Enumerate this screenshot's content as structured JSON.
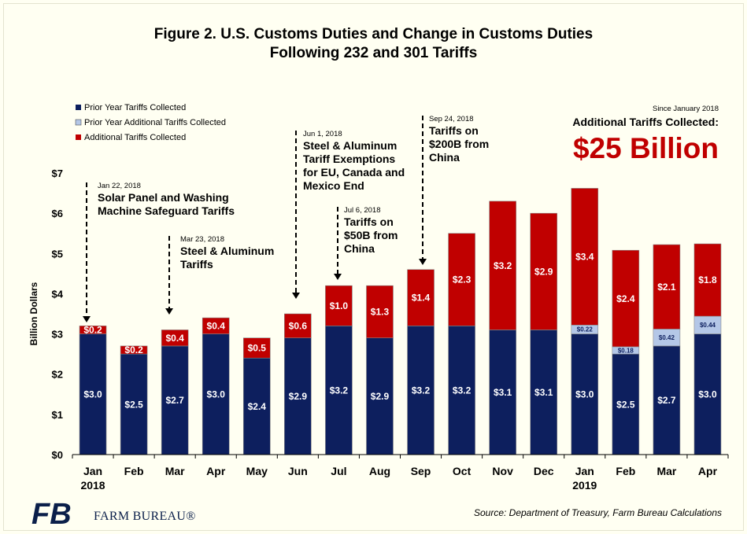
{
  "chart_data": {
    "type": "stacked-bar",
    "title_line1": "Figure 2. U.S. Customs Duties and Change in Customs Duties",
    "title_line2": "Following 232 and 301 Tariffs",
    "ylabel": "Billion Dollars",
    "ylim": [
      0,
      7
    ],
    "yticks": [
      "$0",
      "$1",
      "$2",
      "$3",
      "$4",
      "$5",
      "$6",
      "$7"
    ],
    "categories": [
      "Jan",
      "Feb",
      "Mar",
      "Apr",
      "May",
      "Jun",
      "Jul",
      "Aug",
      "Sep",
      "Oct",
      "Nov",
      "Dec",
      "Jan",
      "Feb",
      "Mar",
      "Apr"
    ],
    "year_labels": [
      {
        "index": 0,
        "label": "2018"
      },
      {
        "index": 12,
        "label": "2019"
      }
    ],
    "series": [
      {
        "name": "Prior Year Tariffs Collected",
        "color": "#0d1f5e",
        "values": [
          3.0,
          2.5,
          2.7,
          3.0,
          2.4,
          2.9,
          3.2,
          2.9,
          3.2,
          3.2,
          3.1,
          3.1,
          3.0,
          2.5,
          2.7,
          3.0
        ],
        "labels": [
          "$3.0",
          "$2.5",
          "$2.7",
          "$3.0",
          "$2.4",
          "$2.9",
          "$3.2",
          "$2.9",
          "$3.2",
          "$3.2",
          "$3.1",
          "$3.1",
          "$3.0",
          "$2.5",
          "$2.7",
          "$3.0"
        ]
      },
      {
        "name": "Prior Year Additional Tariffs Collected",
        "color": "#b4c7e7",
        "values": [
          0,
          0,
          0,
          0,
          0,
          0,
          0,
          0,
          0,
          0,
          0,
          0,
          0.22,
          0.18,
          0.42,
          0.44
        ],
        "labels": [
          "",
          "",
          "",
          "",
          "",
          "",
          "",
          "",
          "",
          "",
          "",
          "",
          "$0.22",
          "$0.18",
          "$0.42",
          "$0.44"
        ]
      },
      {
        "name": "Additional Tariffs Collected",
        "color": "#c00000",
        "values": [
          0.2,
          0.2,
          0.4,
          0.4,
          0.5,
          0.6,
          1.0,
          1.3,
          1.4,
          2.3,
          3.2,
          2.9,
          3.4,
          2.4,
          2.1,
          1.8
        ],
        "labels": [
          "$0.2",
          "$0.2",
          "$0.4",
          "$0.4",
          "$0.5",
          "$0.6",
          "$1.0",
          "$1.3",
          "$1.4",
          "$2.3",
          "$3.2",
          "$2.9",
          "$3.4",
          "$2.4",
          "$2.1",
          "$1.8"
        ]
      }
    ],
    "annotations": [
      {
        "date": "Jan 22, 2018",
        "lines": [
          "Solar Panel and Washing",
          "Machine Safeguard Tariffs"
        ],
        "bar_index": 0
      },
      {
        "date": "Mar 23, 2018",
        "lines": [
          "Steel & Aluminum",
          "Tariffs"
        ],
        "bar_index": 2
      },
      {
        "date": "Jun 1, 2018",
        "lines": [
          "Steel & Aluminum",
          "Tariff Exemptions",
          "for EU, Canada and",
          "Mexico End"
        ],
        "bar_index": 5
      },
      {
        "date": "Jul 6, 2018",
        "lines": [
          "Tariffs on",
          "$50B from",
          "China"
        ],
        "bar_index": 6
      },
      {
        "date": "Sep 24, 2018",
        "lines": [
          "Tariffs on",
          "$200B from",
          "China"
        ],
        "bar_index": 8
      }
    ]
  },
  "callout": {
    "since": "Since January 2018",
    "label": "Additional Tariffs Collected:",
    "total": "$25 Billion"
  },
  "source": "Source: Department of Treasury, Farm Bureau Calculations",
  "brand": {
    "name": "FARM BUREAU®",
    "logo_text": "FB"
  }
}
